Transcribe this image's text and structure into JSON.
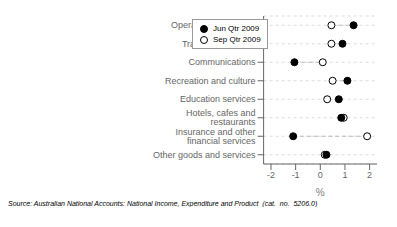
{
  "chart_data": {
    "type": "dumbbell",
    "orientation": "horizontal",
    "categories": [
      "Operation of vehicles",
      "Transport services",
      "Communications",
      "Recreation and culture",
      "Education services",
      "Hotels, cafes and restaurants",
      "Insurance and other financial services",
      "Other goods and services"
    ],
    "series": [
      {
        "name": "Jun Qtr 2009",
        "color": "#000000",
        "marker": "filled",
        "values": [
          1.35,
          0.9,
          -1.05,
          1.1,
          0.75,
          0.85,
          -1.1,
          0.25
        ]
      },
      {
        "name": "Sep Qtr 2009",
        "color": "#000000",
        "marker": "open",
        "values": [
          0.45,
          0.45,
          0.1,
          0.5,
          0.28,
          0.95,
          1.9,
          0.18
        ]
      }
    ],
    "xlim": [
      -2.3,
      2.3
    ],
    "xticks": [
      -2,
      -1,
      0,
      1,
      2
    ],
    "xlabel": "%",
    "line_style": "dashed",
    "grid": true,
    "legend": "upper left",
    "annotations": [
      "Source: Australian National Accounts: National Income, Expenditure and Product  (cat.  no.  5206.0)"
    ]
  }
}
